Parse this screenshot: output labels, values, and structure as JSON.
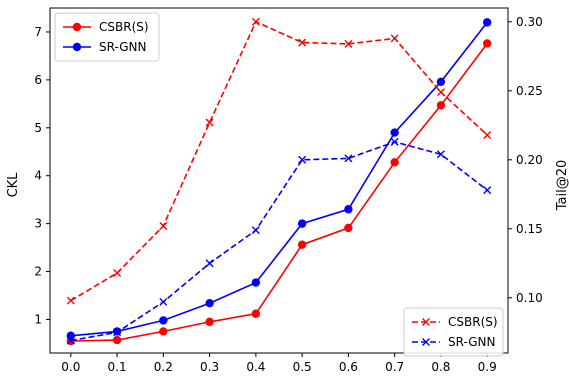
{
  "chart_data": {
    "type": "line",
    "x": [
      0.0,
      0.1,
      0.2,
      0.3,
      0.4,
      0.5,
      0.6,
      0.7,
      0.8,
      0.9
    ],
    "x_tick_labels": [
      "0.0",
      "0.1",
      "0.2",
      "0.3",
      "0.4",
      "0.5",
      "0.6",
      "0.7",
      "0.8",
      "0.9"
    ],
    "xlim": [
      -0.045,
      0.945
    ],
    "left_axis": {
      "label": "CKL",
      "ylim": [
        0.3,
        7.5
      ],
      "ticks": [
        1,
        2,
        3,
        4,
        5,
        6,
        7
      ],
      "tick_labels": [
        "1",
        "2",
        "3",
        "4",
        "5",
        "6",
        "7"
      ]
    },
    "right_axis": {
      "label": "Tail@20",
      "ylim": [
        0.06,
        0.31
      ],
      "ticks": [
        0.1,
        0.15,
        0.2,
        0.25,
        0.3
      ],
      "tick_labels": [
        "0.10",
        "0.15",
        "0.20",
        "0.25",
        "0.30"
      ]
    },
    "series": [
      {
        "name": "CSBR(S)",
        "axis": "left",
        "style": "solid",
        "marker": "circle",
        "color": "#ff0000",
        "values": [
          0.55,
          0.57,
          0.75,
          0.95,
          1.12,
          2.56,
          2.91,
          4.28,
          5.47,
          6.76
        ]
      },
      {
        "name": "SR-GNN",
        "axis": "left",
        "style": "solid",
        "marker": "circle",
        "color": "#0000ff",
        "values": [
          0.66,
          0.75,
          0.98,
          1.34,
          1.77,
          3.0,
          3.3,
          4.9,
          5.96,
          7.2
        ]
      },
      {
        "name": "CSBR(S)",
        "axis": "right",
        "style": "dashed",
        "marker": "x",
        "color": "#ff0000",
        "values": [
          0.098,
          0.118,
          0.152,
          0.227,
          0.3,
          0.285,
          0.284,
          0.288,
          0.249,
          0.218
        ]
      },
      {
        "name": "SR-GNN",
        "axis": "right",
        "style": "dashed",
        "marker": "x",
        "color": "#0000ff",
        "values": [
          0.069,
          0.075,
          0.097,
          0.125,
          0.149,
          0.2,
          0.201,
          0.213,
          0.204,
          0.178
        ]
      }
    ],
    "legends": [
      {
        "placement": "upper-left",
        "entries": [
          "CSBR(S)",
          "SR-GNN"
        ]
      },
      {
        "placement": "lower-right",
        "entries": [
          "CSBR(S)",
          "SR-GNN"
        ]
      }
    ],
    "grid": false
  }
}
